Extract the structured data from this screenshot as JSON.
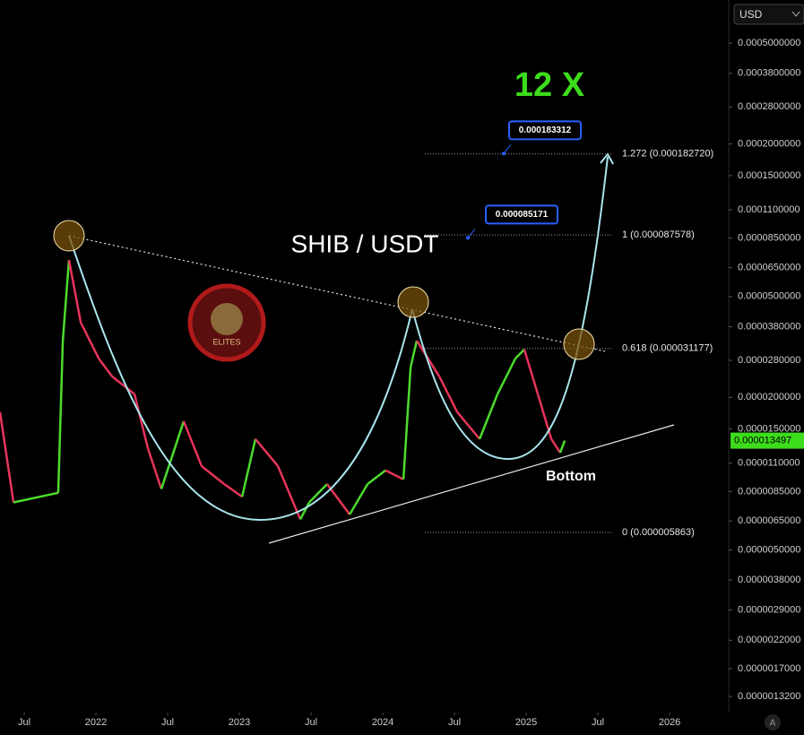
{
  "chart_data": {
    "type": "price-chart",
    "title": "SHIB / USDT",
    "annotation": "12 X",
    "bottom_label": "Bottom",
    "currency": "USD",
    "scale_button": "A",
    "logo_text": "ELITES",
    "log_scale": true,
    "xlim": [
      2021.331,
      2026.412
    ],
    "ylim": [
      1.14e-06,
      0.00074
    ],
    "xticks": [
      {
        "value": 2021.5,
        "label": "Jul"
      },
      2022,
      {
        "value": 2022.5,
        "label": "Jul"
      },
      2023,
      {
        "value": 2023.5,
        "label": "Jul"
      },
      2024,
      {
        "value": 2024.5,
        "label": "Jul"
      },
      2025,
      {
        "value": 2025.5,
        "label": "Jul"
      },
      2026
    ],
    "yticks": [
      {
        "value": 0.0005,
        "label": "0.0005000000"
      },
      {
        "value": 0.00038,
        "label": "0.0003800000"
      },
      {
        "value": 0.00028,
        "label": "0.0002800000"
      },
      {
        "value": 0.0002,
        "label": "0.0002000000"
      },
      {
        "value": 0.00015,
        "label": "0.0001500000"
      },
      {
        "value": 0.00011,
        "label": "0.0001100000"
      },
      {
        "value": 8.5e-05,
        "label": "0.0000850000"
      },
      {
        "value": 6.5e-05,
        "label": "0.0000650000"
      },
      {
        "value": 5e-05,
        "label": "0.0000500000"
      },
      {
        "value": 3.8e-05,
        "label": "0.0000380000"
      },
      {
        "value": 2.8e-05,
        "label": "0.0000280000"
      },
      {
        "value": 2e-05,
        "label": "0.0000200000"
      },
      {
        "value": 1.5e-05,
        "label": "0.0000150000"
      },
      {
        "value": 1.1e-05,
        "label": "0.0000110000"
      },
      {
        "value": 8.5e-06,
        "label": "0.0000085000"
      },
      {
        "value": 6.5e-06,
        "label": "0.0000065000"
      },
      {
        "value": 5e-06,
        "label": "0.0000050000"
      },
      {
        "value": 3.8e-06,
        "label": "0.0000038000"
      },
      {
        "value": 2.9e-06,
        "label": "0.0000029000"
      },
      {
        "value": 2.2e-06,
        "label": "0.0000022000"
      },
      {
        "value": 1.7e-06,
        "label": "0.0000017000"
      },
      {
        "value": 1.32e-06,
        "label": "0.0000013200"
      }
    ],
    "series": [
      {
        "name": "SHIB",
        "up_color": "#4cdc2c",
        "down_color": "#e8345a",
        "x": [
          2021.331,
          2021.425,
          2021.737,
          2021.769,
          2021.812,
          2021.894,
          2022.019,
          2022.112,
          2022.269,
          2022.362,
          2022.456,
          2022.612,
          2022.737,
          2022.894,
          2023.019,
          2023.112,
          2023.269,
          2023.425,
          2023.487,
          2023.612,
          2023.769,
          2023.894,
          2024.019,
          2024.144,
          2024.194,
          2024.237,
          2024.394,
          2024.519,
          2024.675,
          2024.8,
          2024.925,
          2024.987,
          2025.081,
          2025.175,
          2025.237,
          2025.269
        ],
        "values": [
          1.75e-05,
          7.7e-06,
          8.4e-06,
          3.35e-05,
          6.97e-05,
          3.95e-05,
          2.85e-05,
          2.42e-05,
          2.06e-05,
          1.26e-05,
          8.7e-06,
          1.61e-05,
          1.07e-05,
          9.1e-06,
          8.1e-06,
          1.37e-05,
          1.07e-05,
          6.6e-06,
          7.7e-06,
          9.1e-06,
          6.9e-06,
          9.1e-06,
          1.03e-05,
          9.5e-06,
          2.63e-05,
          3.35e-05,
          2.42e-05,
          1.75e-05,
          1.37e-05,
          2.06e-05,
          2.85e-05,
          3.09e-05,
          2.06e-05,
          1.37e-05,
          1.21e-05,
          1.3497e-05
        ]
      }
    ],
    "fib_levels": [
      {
        "price": 0.00018272,
        "label": "1.272 (0.000182720)"
      },
      {
        "price": 8.7578e-05,
        "label": "1 (0.000087578)"
      },
      {
        "price": 3.1177e-05,
        "label": "0.618 (0.000031177)"
      },
      {
        "price": 5.863e-06,
        "label": "0 (0.000005863)"
      }
    ],
    "price_callouts": [
      {
        "value": 0.000183312,
        "label": "0.000183312"
      },
      {
        "value": 8.5171e-05,
        "label": "0.000085171"
      }
    ],
    "last_price": {
      "value": 1.3497e-05,
      "label": "0.000013497"
    }
  }
}
